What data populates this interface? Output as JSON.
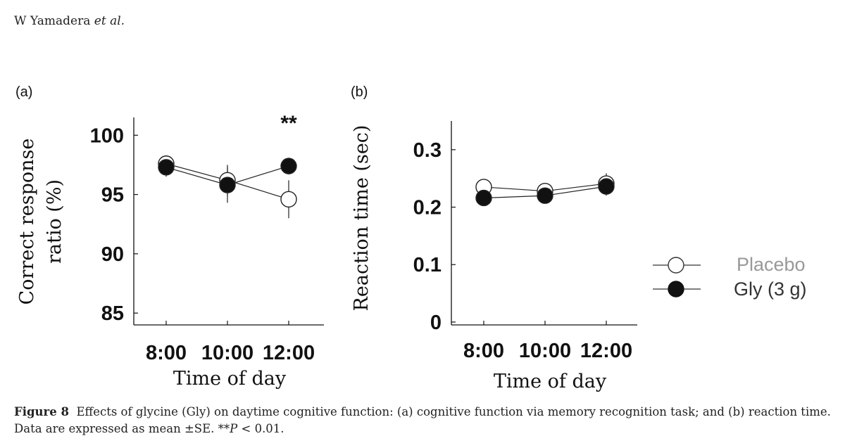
{
  "header": {
    "author": "W Yamadera",
    "etal": "et al."
  },
  "caption": {
    "label": "Figure 8",
    "text": "Effects of glycine (Gly) on daytime cognitive function: (a) cognitive function via memory recognition task; and (b) reaction time. Data are expressed as mean ±SE. **",
    "p_symbol": "P",
    "p_rest": " < 0.01."
  },
  "legend": {
    "placebo_label": "Placebo",
    "gly_label": "Gly (3 g)",
    "placebo_color": "#999999",
    "gly_color": "#333333"
  },
  "chart_data": [
    {
      "type": "line",
      "panel_label": "(a)",
      "ylabel_line1": "Correct response",
      "ylabel_line2": "ratio (%)",
      "xlabel": "Time of day",
      "categories": [
        "8:00",
        "10:00",
        "12:00"
      ],
      "ylim": [
        84,
        101.5
      ],
      "yticks": [
        85,
        90,
        95,
        100
      ],
      "ytick_labels": [
        "85",
        "90",
        "95",
        "100"
      ],
      "annotation": {
        "text": "**",
        "category": "12:00"
      },
      "series": [
        {
          "name": "Placebo",
          "values": [
            97.6,
            96.2,
            94.6
          ],
          "errors": [
            0.7,
            1.3,
            1.6
          ],
          "fill": "#ffffff"
        },
        {
          "name": "Gly (3 g)",
          "values": [
            97.3,
            95.8,
            97.4
          ],
          "errors": [
            0.8,
            1.5,
            0.7
          ],
          "fill": "#111111"
        }
      ]
    },
    {
      "type": "line",
      "panel_label": "(b)",
      "ylabel": "Reaction time (sec)",
      "xlabel": "Time of day",
      "categories": [
        "8:00",
        "10:00",
        "12:00"
      ],
      "ylim": [
        -0.005,
        0.35
      ],
      "yticks": [
        0,
        0.1,
        0.2,
        0.3
      ],
      "ytick_labels": [
        "0",
        "0.1",
        "0.2",
        "0.3"
      ],
      "series": [
        {
          "name": "Placebo",
          "values": [
            0.235,
            0.228,
            0.241
          ],
          "errors": [
            0.005,
            0.006,
            0.018
          ],
          "fill": "#ffffff"
        },
        {
          "name": "Gly (3 g)",
          "values": [
            0.216,
            0.22,
            0.236
          ],
          "errors": [
            0.005,
            0.006,
            0.016
          ],
          "fill": "#111111"
        }
      ]
    }
  ]
}
